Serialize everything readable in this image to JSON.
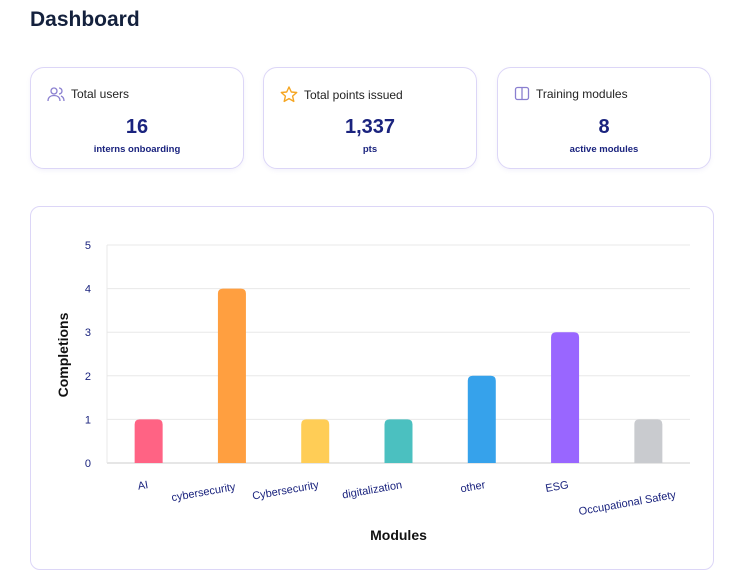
{
  "page_title": "Dashboard",
  "stats": [
    {
      "icon": "users-icon",
      "label": "Total users",
      "value": "16",
      "sub": "interns onboarding"
    },
    {
      "icon": "star-icon",
      "label": "Total points issued",
      "value": "1,337",
      "sub": "pts"
    },
    {
      "icon": "book-icon",
      "label": "Training modules",
      "value": "8",
      "sub": "active modules"
    }
  ],
  "chart_data": {
    "type": "bar",
    "categories": [
      "AI",
      "cybersecurity",
      "Cybersecurity",
      "digitalization",
      "other",
      "ESG",
      "Occupational Safety"
    ],
    "values": [
      1,
      4,
      1,
      1,
      2,
      3,
      1
    ],
    "colors": [
      "#ff6384",
      "#ff9f40",
      "#ffcd56",
      "#4bc0c0",
      "#36a2eb",
      "#9966ff",
      "#c9cbcf"
    ],
    "xlabel": "Modules",
    "ylabel": "Completions",
    "ylim": [
      0,
      5
    ],
    "yticks": [
      "0",
      "1",
      "2",
      "3",
      "4",
      "5"
    ],
    "grid": true
  }
}
